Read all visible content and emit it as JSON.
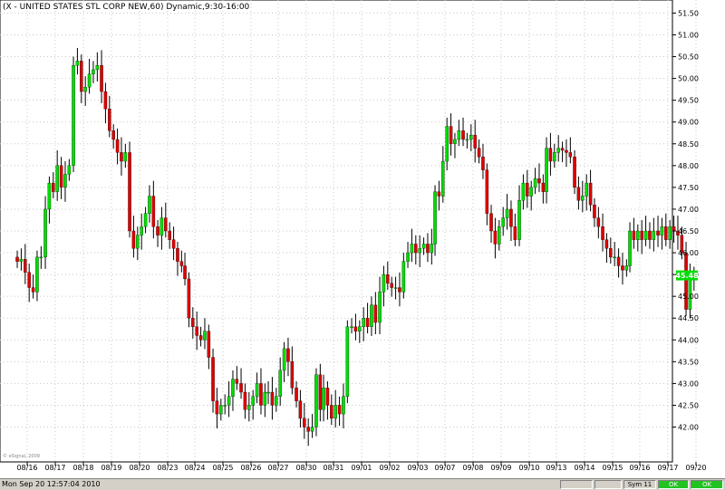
{
  "chart_data": {
    "type": "candlestick",
    "title": "(X - UNITED STATES STL CORP NEW,60) Dynamic,9:30-16:00",
    "copyright": "© eSignal, 2009",
    "ylim": [
      41.2,
      51.8
    ],
    "y_ticks": [
      "42.00",
      "42.50",
      "43.00",
      "43.50",
      "44.00",
      "44.50",
      "45.00",
      "45.50",
      "46.00",
      "46.50",
      "47.00",
      "47.50",
      "48.00",
      "48.50",
      "49.00",
      "49.50",
      "50.00",
      "50.50",
      "51.00",
      "51.50"
    ],
    "x_labels": [
      "08/16",
      "08/17",
      "08/18",
      "08/19",
      "08/20",
      "08/23",
      "08/24",
      "08/25",
      "08/26",
      "08/27",
      "08/30",
      "08/31",
      "09/01",
      "09/02",
      "09/03",
      "09/07",
      "09/08",
      "09/09",
      "09/10",
      "09/13",
      "09/14",
      "09/15",
      "09/16",
      "09/17",
      "09/20"
    ],
    "last_price": "45.48",
    "up_color": "#00dd00",
    "down_color": "#dd0000",
    "last_price_color": "#00dd00",
    "days": [
      {
        "label": "08/16",
        "closes": [
          45.8,
          45.85,
          45.55,
          45.2,
          45.1,
          45.9,
          45.9
        ]
      },
      {
        "label": "08/17",
        "closes": [
          47.0,
          47.6,
          47.4,
          48.0,
          47.5,
          47.8,
          48.0
        ]
      },
      {
        "label": "08/18",
        "closes": [
          50.3,
          50.4,
          49.7,
          49.8,
          50.1,
          50.2,
          50.3
        ]
      },
      {
        "label": "08/19",
        "closes": [
          49.7,
          49.3,
          48.8,
          48.6,
          48.3,
          48.1,
          48.3
        ]
      },
      {
        "label": "08/20",
        "closes": [
          46.5,
          46.1,
          46.4,
          46.6,
          46.9,
          47.3,
          46.6
        ]
      },
      {
        "label": "08/23",
        "closes": [
          46.4,
          46.8,
          46.5,
          46.3,
          46.1,
          45.8,
          45.7
        ]
      },
      {
        "label": "08/24",
        "closes": [
          45.4,
          44.5,
          44.3,
          44.1,
          44.0,
          44.2,
          43.6
        ]
      },
      {
        "label": "08/25",
        "closes": [
          42.6,
          42.3,
          42.5,
          42.5,
          42.7,
          43.1,
          43.0
        ]
      },
      {
        "label": "08/26",
        "closes": [
          42.8,
          42.4,
          42.5,
          42.7,
          43.0,
          42.5,
          42.8
        ]
      },
      {
        "label": "08/27",
        "closes": [
          42.8,
          42.5,
          42.7,
          43.3,
          43.8,
          43.5,
          42.9
        ]
      },
      {
        "label": "08/30",
        "closes": [
          42.6,
          42.2,
          42.0,
          41.9,
          42.0,
          43.2,
          42.4
        ]
      },
      {
        "label": "08/31",
        "closes": [
          42.9,
          42.5,
          42.2,
          42.5,
          42.3,
          42.7,
          44.3
        ]
      },
      {
        "label": "09/01",
        "closes": [
          44.3,
          44.2,
          44.3,
          44.5,
          44.3,
          44.8,
          44.4
        ]
      },
      {
        "label": "09/02",
        "closes": [
          45.1,
          45.5,
          45.3,
          45.2,
          45.2,
          45.1,
          45.8
        ]
      },
      {
        "label": "09/03",
        "closes": [
          46.0,
          46.2,
          46.0,
          46.1,
          46.2,
          46.0,
          46.2
        ]
      },
      {
        "label": "09/07",
        "closes": [
          47.4,
          47.3,
          48.1,
          48.9,
          48.5,
          48.6,
          48.8
        ]
      },
      {
        "label": "09/08",
        "closes": [
          48.6,
          48.6,
          48.7,
          48.4,
          48.2,
          47.9,
          46.9
        ]
      },
      {
        "label": "09/09",
        "closes": [
          46.5,
          46.2,
          46.6,
          46.8,
          47.0,
          46.6,
          46.3
        ]
      },
      {
        "label": "09/10",
        "closes": [
          47.2,
          47.6,
          47.3,
          47.5,
          47.7,
          47.6,
          47.4
        ]
      },
      {
        "label": "09/13",
        "closes": [
          48.4,
          48.1,
          48.3,
          48.4,
          48.35,
          48.3,
          48.2
        ]
      },
      {
        "label": "09/14",
        "closes": [
          47.5,
          47.2,
          47.3,
          47.6,
          47.1,
          46.8,
          46.6
        ]
      },
      {
        "label": "09/15",
        "closes": [
          46.3,
          46.1,
          45.9,
          45.9,
          45.7,
          45.6,
          45.7
        ]
      },
      {
        "label": "09/16",
        "closes": [
          46.5,
          46.3,
          46.5,
          46.3,
          46.5,
          46.3,
          46.5
        ]
      },
      {
        "label": "09/17",
        "closes": [
          46.4,
          46.6,
          46.3,
          46.6,
          46.5,
          46.4,
          46.0
        ]
      },
      {
        "label": "09/20",
        "closes": [
          44.7,
          45.4,
          45.48
        ]
      }
    ]
  },
  "status_bar": {
    "datetime": "Mon Sep 20 12:57:04 2010",
    "sym": "Sym 11",
    "ok1": "OK",
    "ok2": "OK"
  }
}
